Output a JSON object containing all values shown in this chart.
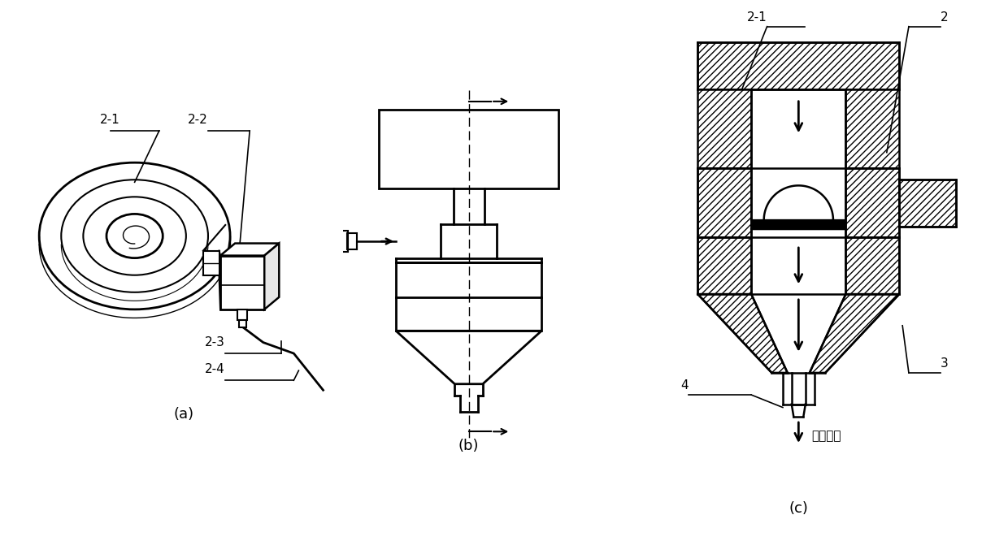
{
  "bg_color": "#ffffff",
  "line_color": "#000000",
  "label_a": "(a)",
  "label_b": "(b)",
  "label_c": "(c)",
  "sand_flow_label": "砂流方向",
  "figsize": [
    12.4,
    6.66
  ],
  "dpi": 100
}
